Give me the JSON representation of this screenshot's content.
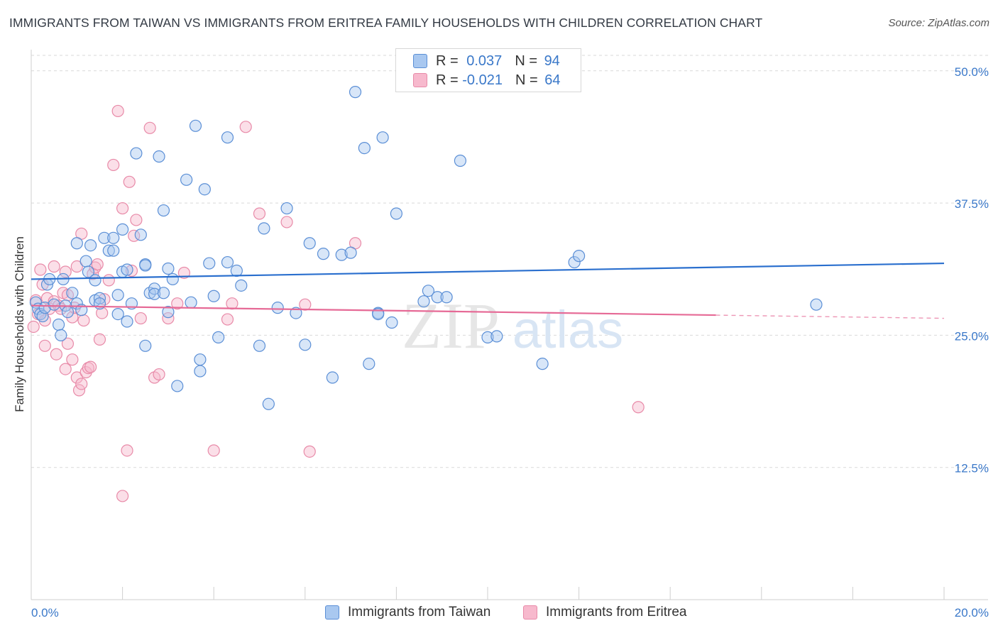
{
  "header": {
    "title": "IMMIGRANTS FROM TAIWAN VS IMMIGRANTS FROM ERITREA FAMILY HOUSEHOLDS WITH CHILDREN CORRELATION CHART",
    "source": "Source: ZipAtlas.com"
  },
  "watermark": {
    "zip": "ZIP",
    "atlas": "atlas"
  },
  "legend": {
    "taiwan": {
      "r_label": "R =",
      "r_value": "0.037",
      "n_label": "N =",
      "n_value": "94"
    },
    "eritrea": {
      "r_label": "R =",
      "r_value": "-0.021",
      "n_label": "N =",
      "n_value": "64"
    }
  },
  "colors": {
    "taiwan_fill": "#a9c8f0",
    "taiwan_stroke": "#5b8fd6",
    "taiwan_line": "#2a6fce",
    "eritrea_fill": "#f7b9cd",
    "eritrea_stroke": "#e88aa8",
    "eritrea_line": "#e66a96",
    "tick_label": "#3a78c9",
    "grid": "#d9d9d9"
  },
  "chart_data": {
    "type": "scatter",
    "title": "IMMIGRANTS FROM TAIWAN VS IMMIGRANTS FROM ERITREA FAMILY HOUSEHOLDS WITH CHILDREN CORRELATION CHART",
    "xlabel": "",
    "ylabel": "Family Households with Children",
    "xlim": [
      0,
      20
    ],
    "ylim": [
      0,
      52
    ],
    "x_tick_labels": [
      "0.0%",
      "20.0%"
    ],
    "y_ticks": [
      12.5,
      25.0,
      37.5,
      50.0
    ],
    "y_tick_labels": [
      "12.5%",
      "25.0%",
      "37.5%",
      "50.0%"
    ],
    "grid": true,
    "legend_position": "top-center",
    "series": [
      {
        "name": "Immigrants from Taiwan",
        "r": 0.037,
        "n": 94,
        "trend": {
          "x": [
            0,
            20
          ],
          "y": [
            30.3,
            31.8
          ],
          "dashed_from": null
        },
        "points": [
          [
            0.1,
            28.1
          ],
          [
            0.15,
            27.5
          ],
          [
            0.2,
            27.0
          ],
          [
            0.25,
            26.8
          ],
          [
            0.3,
            27.6
          ],
          [
            0.35,
            29.8
          ],
          [
            0.4,
            30.3
          ],
          [
            0.5,
            27.9
          ],
          [
            0.6,
            26.0
          ],
          [
            0.65,
            25.0
          ],
          [
            0.7,
            30.3
          ],
          [
            0.75,
            27.8
          ],
          [
            0.8,
            27.2
          ],
          [
            0.9,
            29.0
          ],
          [
            1.0,
            28.0
          ],
          [
            1.0,
            33.7
          ],
          [
            1.1,
            27.4
          ],
          [
            1.2,
            32.0
          ],
          [
            1.25,
            31.0
          ],
          [
            1.3,
            33.5
          ],
          [
            1.4,
            28.3
          ],
          [
            1.4,
            30.2
          ],
          [
            1.5,
            28.5
          ],
          [
            1.6,
            34.2
          ],
          [
            1.7,
            33.0
          ],
          [
            1.8,
            34.2
          ],
          [
            1.8,
            33.0
          ],
          [
            1.9,
            28.8
          ],
          [
            1.9,
            27.0
          ],
          [
            2.0,
            35.0
          ],
          [
            2.0,
            31.0
          ],
          [
            2.1,
            31.2
          ],
          [
            2.1,
            26.3
          ],
          [
            2.2,
            28.0
          ],
          [
            2.3,
            42.2
          ],
          [
            2.4,
            34.5
          ],
          [
            2.5,
            24.0
          ],
          [
            2.5,
            31.7
          ],
          [
            2.6,
            29.0
          ],
          [
            2.7,
            29.4
          ],
          [
            2.7,
            28.9
          ],
          [
            2.8,
            41.9
          ],
          [
            2.9,
            36.8
          ],
          [
            2.9,
            29.0
          ],
          [
            3.0,
            31.3
          ],
          [
            3.0,
            27.2
          ],
          [
            3.1,
            30.3
          ],
          [
            3.2,
            20.2
          ],
          [
            3.4,
            39.7
          ],
          [
            3.5,
            28.1
          ],
          [
            3.6,
            44.8
          ],
          [
            3.7,
            21.6
          ],
          [
            3.7,
            22.7
          ],
          [
            3.8,
            38.8
          ],
          [
            3.9,
            31.8
          ],
          [
            4.0,
            28.7
          ],
          [
            4.1,
            24.8
          ],
          [
            4.3,
            43.7
          ],
          [
            4.3,
            31.9
          ],
          [
            4.5,
            31.1
          ],
          [
            4.6,
            29.7
          ],
          [
            5.0,
            24.0
          ],
          [
            5.1,
            35.1
          ],
          [
            5.2,
            18.5
          ],
          [
            5.4,
            27.6
          ],
          [
            5.6,
            37.0
          ],
          [
            5.8,
            27.1
          ],
          [
            6.0,
            24.1
          ],
          [
            6.1,
            33.7
          ],
          [
            6.4,
            32.7
          ],
          [
            6.6,
            21.0
          ],
          [
            6.8,
            32.6
          ],
          [
            7.0,
            32.8
          ],
          [
            7.1,
            48.0
          ],
          [
            7.3,
            42.7
          ],
          [
            7.4,
            22.3
          ],
          [
            7.6,
            27.1
          ],
          [
            7.6,
            27.0
          ],
          [
            7.7,
            43.7
          ],
          [
            7.9,
            26.2
          ],
          [
            8.0,
            36.5
          ],
          [
            8.6,
            28.2
          ],
          [
            8.7,
            29.2
          ],
          [
            8.9,
            28.6
          ],
          [
            9.1,
            28.6
          ],
          [
            9.4,
            41.5
          ],
          [
            10.0,
            24.8
          ],
          [
            10.2,
            24.9
          ],
          [
            11.2,
            22.3
          ],
          [
            11.9,
            31.9
          ],
          [
            12.0,
            32.5
          ],
          [
            17.2,
            27.9
          ],
          [
            1.5,
            28.0
          ],
          [
            2.5,
            31.6
          ]
        ]
      },
      {
        "name": "Immigrants from Eritrea",
        "r": -0.021,
        "n": 64,
        "trend": {
          "x": [
            0,
            20
          ],
          "y": [
            27.8,
            26.6
          ],
          "dashed_from": 15.0
        },
        "points": [
          [
            0.05,
            25.8
          ],
          [
            0.1,
            28.3
          ],
          [
            0.15,
            27.0
          ],
          [
            0.2,
            31.2
          ],
          [
            0.25,
            29.8
          ],
          [
            0.3,
            24.0
          ],
          [
            0.35,
            28.5
          ],
          [
            0.4,
            27.5
          ],
          [
            0.5,
            31.5
          ],
          [
            0.5,
            28.2
          ],
          [
            0.55,
            23.2
          ],
          [
            0.6,
            27.8
          ],
          [
            0.65,
            27.5
          ],
          [
            0.7,
            29.0
          ],
          [
            0.75,
            21.8
          ],
          [
            0.75,
            31.0
          ],
          [
            0.8,
            28.8
          ],
          [
            0.8,
            24.2
          ],
          [
            0.9,
            22.7
          ],
          [
            0.9,
            26.7
          ],
          [
            0.95,
            27.6
          ],
          [
            1.0,
            21.0
          ],
          [
            1.0,
            31.5
          ],
          [
            1.05,
            19.8
          ],
          [
            1.1,
            20.4
          ],
          [
            1.1,
            34.6
          ],
          [
            1.15,
            26.4
          ],
          [
            1.2,
            21.5
          ],
          [
            1.25,
            21.9
          ],
          [
            1.3,
            22.0
          ],
          [
            1.35,
            30.8
          ],
          [
            1.4,
            31.4
          ],
          [
            1.45,
            31.7
          ],
          [
            1.5,
            24.6
          ],
          [
            1.55,
            27.1
          ],
          [
            1.6,
            28.4
          ],
          [
            1.7,
            30.2
          ],
          [
            1.8,
            41.1
          ],
          [
            1.9,
            46.2
          ],
          [
            2.0,
            37.0
          ],
          [
            2.1,
            14.1
          ],
          [
            2.15,
            39.5
          ],
          [
            2.2,
            31.1
          ],
          [
            2.25,
            34.4
          ],
          [
            2.3,
            35.9
          ],
          [
            2.4,
            26.6
          ],
          [
            2.6,
            44.6
          ],
          [
            2.7,
            21.0
          ],
          [
            2.8,
            21.3
          ],
          [
            3.0,
            26.6
          ],
          [
            3.2,
            28.0
          ],
          [
            3.35,
            30.9
          ],
          [
            4.0,
            14.1
          ],
          [
            4.3,
            26.5
          ],
          [
            4.7,
            44.7
          ],
          [
            5.0,
            36.5
          ],
          [
            5.6,
            35.7
          ],
          [
            6.1,
            14.0
          ],
          [
            6.0,
            27.9
          ],
          [
            7.1,
            33.7
          ],
          [
            13.3,
            18.2
          ],
          [
            2.0,
            9.8
          ],
          [
            0.3,
            26.4
          ],
          [
            4.4,
            28.0
          ]
        ]
      }
    ]
  },
  "bottom_legend": {
    "taiwan": "Immigrants from Taiwan",
    "eritrea": "Immigrants from Eritrea"
  }
}
